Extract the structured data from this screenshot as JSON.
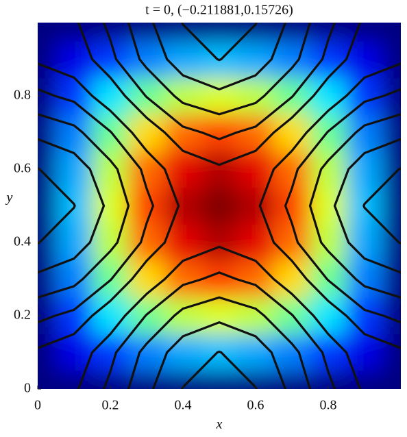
{
  "chart_data": {
    "type": "contour",
    "title": "t = 0, (−0.211881,0.15726)",
    "x_label": "x",
    "y_label": "y",
    "xlim": [
      0,
      1
    ],
    "ylim": [
      0,
      1
    ],
    "xticks": [
      0,
      0.2,
      0.4,
      0.6,
      0.8
    ],
    "yticks": [
      0,
      0.2,
      0.4,
      0.6,
      0.8
    ],
    "colormap": "jet",
    "line_color": "#111111",
    "grid_x": [
      0,
      0.1,
      0.2,
      0.3,
      0.4,
      0.5,
      0.6,
      0.7,
      0.8,
      0.9,
      1
    ],
    "grid_y": [
      0,
      0.1,
      0.2,
      0.3,
      0.4,
      0.5,
      0.6,
      0.7,
      0.8,
      0.9,
      1
    ],
    "color_field": [
      [
        0,
        0,
        0,
        0,
        0,
        0,
        0,
        0,
        0,
        0,
        0
      ],
      [
        0,
        0.1,
        0.18,
        0.25,
        0.29,
        0.31,
        0.29,
        0.25,
        0.18,
        0.1,
        0
      ],
      [
        0,
        0.18,
        0.35,
        0.48,
        0.56,
        0.59,
        0.56,
        0.48,
        0.35,
        0.18,
        0
      ],
      [
        0,
        0.25,
        0.48,
        0.66,
        0.77,
        0.81,
        0.77,
        0.66,
        0.48,
        0.25,
        0
      ],
      [
        0,
        0.29,
        0.56,
        0.77,
        0.9,
        0.95,
        0.9,
        0.77,
        0.56,
        0.29,
        0
      ],
      [
        0,
        0.31,
        0.59,
        0.81,
        0.95,
        1,
        0.95,
        0.81,
        0.59,
        0.31,
        0
      ],
      [
        0,
        0.29,
        0.56,
        0.77,
        0.9,
        0.95,
        0.9,
        0.77,
        0.56,
        0.29,
        0
      ],
      [
        0,
        0.25,
        0.48,
        0.66,
        0.77,
        0.81,
        0.77,
        0.66,
        0.48,
        0.25,
        0
      ],
      [
        0,
        0.18,
        0.35,
        0.48,
        0.56,
        0.59,
        0.56,
        0.48,
        0.35,
        0.18,
        0
      ],
      [
        0,
        0.1,
        0.18,
        0.25,
        0.29,
        0.31,
        0.29,
        0.25,
        0.18,
        0.1,
        0
      ],
      [
        0,
        0,
        0,
        0,
        0,
        0,
        0,
        0,
        0,
        0,
        0
      ]
    ],
    "contour_field": [
      [
        0,
        0.19,
        0.69,
        1.31,
        1.81,
        2,
        1.81,
        1.31,
        0.69,
        0.19,
        0
      ],
      [
        -0.19,
        0,
        0.5,
        1.12,
        1.62,
        1.81,
        1.62,
        1.12,
        0.5,
        0,
        -0.19
      ],
      [
        -0.69,
        -0.5,
        0,
        0.62,
        1.12,
        1.31,
        1.12,
        0.62,
        0,
        -0.5,
        -0.69
      ],
      [
        -1.31,
        -1.12,
        -0.62,
        0,
        0.5,
        0.69,
        0.5,
        0,
        -0.62,
        -1.12,
        -1.31
      ],
      [
        -1.81,
        -1.62,
        -1.12,
        -0.5,
        0,
        0.19,
        0,
        -0.5,
        -1.12,
        -1.62,
        -1.81
      ],
      [
        -2,
        -1.81,
        -1.31,
        -0.69,
        -0.19,
        0,
        -0.19,
        -0.69,
        -1.31,
        -1.81,
        -2
      ],
      [
        -1.81,
        -1.62,
        -1.12,
        -0.5,
        0,
        0.19,
        0,
        -0.5,
        -1.12,
        -1.62,
        -1.81
      ],
      [
        -1.31,
        -1.12,
        -0.62,
        0,
        0.5,
        0.69,
        0.5,
        0,
        -0.62,
        -1.12,
        -1.31
      ],
      [
        -0.69,
        -0.5,
        0,
        0.62,
        1.12,
        1.31,
        1.12,
        0.62,
        0,
        -0.5,
        -0.69
      ],
      [
        -0.19,
        0,
        0.5,
        1.12,
        1.62,
        1.81,
        1.62,
        1.12,
        0.5,
        0,
        -0.19
      ],
      [
        0,
        0.19,
        0.69,
        1.31,
        1.81,
        2,
        1.81,
        1.31,
        0.69,
        0.19,
        0
      ]
    ],
    "contour_levels": [
      -1.8,
      -1.4,
      -1.0,
      -0.6,
      -0.25,
      0.25,
      0.6,
      1.0,
      1.4,
      1.8
    ]
  }
}
